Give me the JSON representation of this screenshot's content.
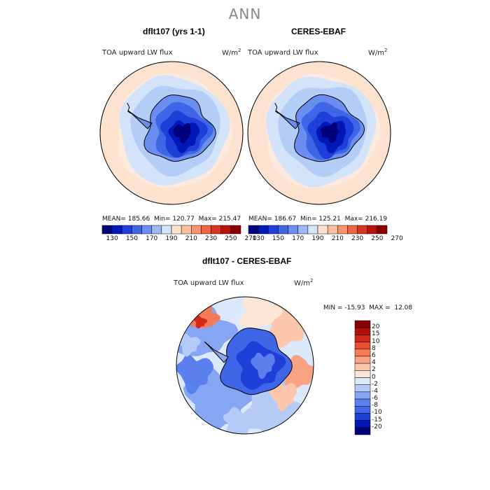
{
  "title": "ANN",
  "colors": {
    "land_outline": "#000000",
    "cb_top": [
      "#00007a",
      "#0018b8",
      "#1f3fd9",
      "#3f66e6",
      "#6a8ef0",
      "#9cb8f5",
      "#d2e3fa",
      "#fde3cf",
      "#fcbfa0",
      "#f8956e",
      "#f06543",
      "#d9351e",
      "#b8110c",
      "#8a0000"
    ],
    "cb_diff": [
      "#00007a",
      "#0018b8",
      "#1f3fd9",
      "#3f66e6",
      "#5a80ee",
      "#86a6f3",
      "#b4caf7",
      "#dce8fb",
      "#fde6d6",
      "#fcc7ad",
      "#f9a383",
      "#f47a58",
      "#ea4e30",
      "#d2291a",
      "#b0100c",
      "#850000"
    ]
  },
  "chart_data": [
    {
      "type": "heatmap",
      "title": "dflt107 (yrs 1-1)",
      "field": "TOA upward LW flux",
      "units": "W/m",
      "units_exp": "2",
      "stats": {
        "mean": "MEAN= 185.66",
        "min": "Min= 120.77",
        "max": "Max= 215.47"
      },
      "colorbar_ticks": [
        "130",
        "150",
        "170",
        "190",
        "210",
        "230",
        "250",
        "270"
      ]
    },
    {
      "type": "heatmap",
      "title": "CERES-EBAF",
      "field": "TOA upward LW flux",
      "units": "W/m",
      "units_exp": "2",
      "stats": {
        "mean": "MEAN= 186.67",
        "min": "Min= 125.21",
        "max": "Max= 216.19"
      },
      "colorbar_ticks": [
        "130",
        "150",
        "170",
        "190",
        "210",
        "230",
        "250",
        "270"
      ]
    },
    {
      "type": "heatmap",
      "title": "dflt107 - CERES-EBAF",
      "field": "TOA upward LW flux",
      "units": "W/m",
      "units_exp": "2",
      "stats": {
        "minmax": "MIN = -15.93  MAX =  12.08"
      },
      "colorbar_ticks": [
        "20",
        "15",
        "10",
        "8",
        "6",
        "4",
        "2",
        "0",
        "-2",
        "-4",
        "-6",
        "-8",
        "-10",
        "-15",
        "-20"
      ]
    }
  ]
}
